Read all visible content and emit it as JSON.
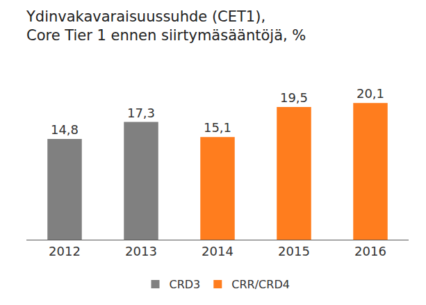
{
  "chart_data": {
    "type": "bar",
    "title": "Ydinvakavaraisuussuhde (CET1),\nCore Tier 1 ennen siirtymäsääntöjä, %",
    "categories": [
      "2012",
      "2013",
      "2014",
      "2015",
      "2016"
    ],
    "series": [
      {
        "name": "CRD3",
        "color": "#808080",
        "values": [
          14.8,
          17.3,
          null,
          null,
          null
        ],
        "value_labels": [
          "14,8",
          "17,3",
          null,
          null,
          null
        ]
      },
      {
        "name": "CRR/CRD4",
        "color": "#ff7d1e",
        "values": [
          null,
          null,
          15.1,
          19.5,
          20.1
        ],
        "value_labels": [
          null,
          null,
          "15,1",
          "19,5",
          "20,1"
        ]
      }
    ],
    "ylim": [
      0,
      24
    ],
    "grid": false,
    "legend": "bottom",
    "data_labels": true,
    "tick_labels": "x"
  }
}
